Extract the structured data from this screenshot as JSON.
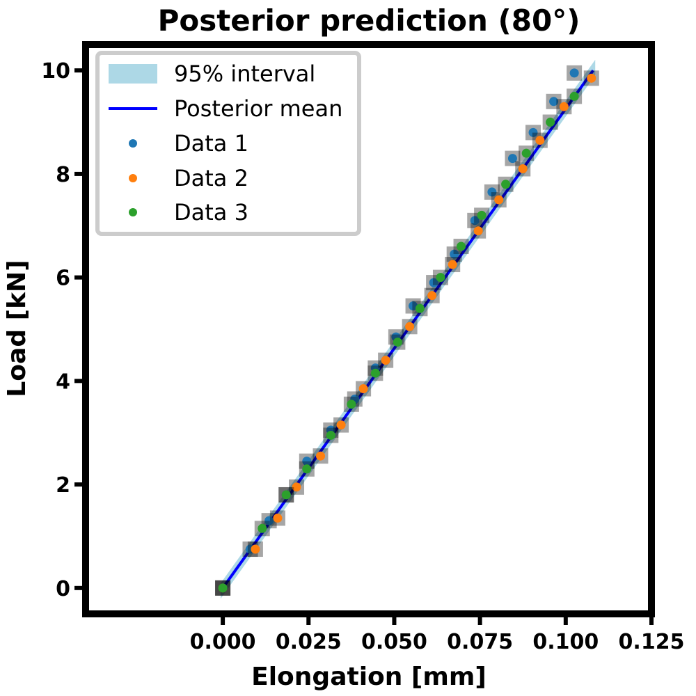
{
  "chart_data": {
    "type": "line",
    "title": "Posterior prediction (80°)",
    "xlabel": "Elongation [mm]",
    "ylabel": "Load [kN]",
    "xlim": [
      -0.04,
      0.125
    ],
    "ylim": [
      -0.5,
      10.5
    ],
    "xticks": [
      0.0,
      0.025,
      0.05,
      0.075,
      0.1,
      0.125
    ],
    "xtick_labels": [
      "0.000",
      "0.025",
      "0.050",
      "0.075",
      "0.100",
      "0.125"
    ],
    "yticks": [
      0,
      2,
      4,
      6,
      8,
      10
    ],
    "ytick_labels": [
      "0",
      "2",
      "4",
      "6",
      "8",
      "10"
    ],
    "grid": false,
    "legend_position": "top-left",
    "colors": {
      "interval": "#add8e6",
      "mean": "#0000ff",
      "data1": "#1f77b4",
      "data2": "#ff7f0e",
      "data3": "#2ca02c"
    },
    "interval": {
      "name": "95% interval",
      "x": [
        0.0,
        0.108
      ],
      "lower": [
        -0.08,
        9.92
      ],
      "upper": [
        0.08,
        10.08
      ]
    },
    "mean": {
      "name": "Posterior mean",
      "x": [
        0.0,
        0.108
      ],
      "y": [
        0.0,
        10.0
      ]
    },
    "series": [
      {
        "name": "Data 1",
        "x": [
          0.0,
          0.008,
          0.0135,
          0.0185,
          0.0245,
          0.0315,
          0.0385,
          0.0445,
          0.0505,
          0.0555,
          0.0615,
          0.0675,
          0.0735,
          0.0785,
          0.0845,
          0.0905,
          0.0965,
          0.1025
        ],
        "y": [
          0.0,
          0.75,
          1.3,
          1.8,
          2.45,
          3.05,
          3.65,
          4.25,
          4.85,
          5.45,
          5.9,
          6.45,
          7.1,
          7.65,
          8.3,
          8.8,
          9.4,
          9.95
        ]
      },
      {
        "name": "Data 2",
        "x": [
          0.0,
          0.0095,
          0.016,
          0.0215,
          0.0285,
          0.0345,
          0.041,
          0.0475,
          0.0545,
          0.061,
          0.067,
          0.0745,
          0.0805,
          0.0875,
          0.0925,
          0.0995,
          0.1075
        ],
        "y": [
          0.0,
          0.75,
          1.35,
          1.95,
          2.55,
          3.15,
          3.85,
          4.4,
          5.05,
          5.65,
          6.25,
          6.9,
          7.5,
          8.1,
          8.65,
          9.3,
          9.85
        ]
      },
      {
        "name": "Data 3",
        "x": [
          0.0,
          0.0115,
          0.0185,
          0.0245,
          0.0315,
          0.0375,
          0.0445,
          0.051,
          0.0575,
          0.0635,
          0.0695,
          0.0755,
          0.0825,
          0.0885,
          0.0955,
          0.1025
        ],
        "y": [
          0.0,
          1.15,
          1.8,
          2.3,
          2.95,
          3.55,
          4.15,
          4.75,
          5.4,
          6.0,
          6.6,
          7.2,
          7.8,
          8.4,
          9.0,
          9.5
        ]
      }
    ]
  }
}
